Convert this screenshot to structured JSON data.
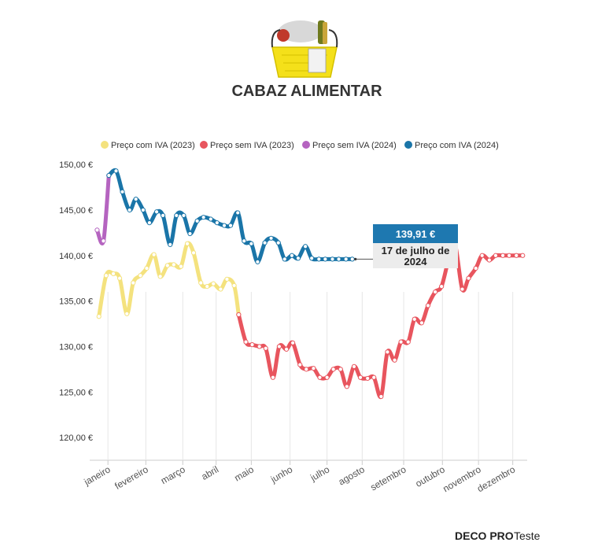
{
  "chart_data": {
    "type": "line",
    "title": "CABAZ ALIMENTAR",
    "ylim": [
      117.5,
      152
    ],
    "yticks": [
      120,
      125,
      130,
      135,
      140,
      145,
      150
    ],
    "ytick_labels": [
      "120,00 €",
      "125,00 €",
      "130,00 €",
      "135,00 €",
      "140,00 €",
      "145,00 €",
      "150,00 €"
    ],
    "xlim": [
      0,
      48
    ],
    "months": [
      {
        "label": "janeiro",
        "x": 1.5
      },
      {
        "label": "fevereiro",
        "x": 5.7
      },
      {
        "label": "março",
        "x": 9.8
      },
      {
        "label": "abril",
        "x": 13.5
      },
      {
        "label": "maio",
        "x": 17.4
      },
      {
        "label": "junho",
        "x": 21.7
      },
      {
        "label": "julho",
        "x": 25.8
      },
      {
        "label": "agosto",
        "x": 29.7
      },
      {
        "label": "setembro",
        "x": 34.3
      },
      {
        "label": "outubro",
        "x": 38.6
      },
      {
        "label": "novembro",
        "x": 42.6
      },
      {
        "label": "dezembro",
        "x": 46.4
      }
    ],
    "series": [
      {
        "name": "Preço com IVA (2023)",
        "color": "#f4e27e",
        "x": [
          0.5,
          1.3,
          2.1,
          2.8,
          3.6,
          4.3,
          5.1,
          5.8,
          6.6,
          7.3,
          8.1,
          8.8,
          9.6,
          10.3,
          11.0,
          11.8,
          12.5,
          13.2,
          14.0,
          14.7,
          15.5,
          16.0
        ],
        "values": [
          133.3,
          137.8,
          138.0,
          137.5,
          133.6,
          137.0,
          137.8,
          138.6,
          140.1,
          137.7,
          138.9,
          139.0,
          138.8,
          141.3,
          140.3,
          137.0,
          136.6,
          136.9,
          136.3,
          137.4,
          136.7,
          133.5
        ]
      },
      {
        "name": "Preço sem IVA (2023)",
        "color": "#e8555e",
        "x": [
          16.0,
          16.8,
          17.5,
          18.3,
          19.0,
          19.8,
          20.5,
          21.3,
          22.0,
          22.8,
          23.5,
          24.3,
          25.0,
          25.8,
          26.5,
          27.3,
          28.0,
          28.8,
          29.5,
          30.3,
          31.0,
          31.8,
          32.5,
          33.3,
          34.0,
          34.8,
          35.5,
          36.3,
          37.0,
          37.8,
          38.5,
          39.3,
          40.0,
          40.8,
          41.5,
          42.3,
          43.0,
          43.8,
          44.5,
          45.3,
          46.0,
          46.8,
          47.5
        ],
        "values": [
          133.5,
          130.5,
          130.2,
          130.0,
          129.8,
          126.6,
          130.0,
          129.7,
          130.4,
          128.0,
          127.5,
          127.6,
          126.6,
          126.6,
          127.5,
          127.5,
          125.6,
          127.8,
          126.6,
          126.5,
          126.6,
          124.5,
          129.4,
          128.5,
          130.5,
          130.5,
          133.0,
          132.6,
          134.5,
          136.0,
          136.6,
          139.6,
          141.2,
          136.3,
          137.5,
          138.6,
          140.0,
          139.5,
          140.0,
          140.0,
          140.0,
          140.0,
          140.0
        ]
      },
      {
        "name": "Preço sem IVA (2024)",
        "color": "#b564c0",
        "x": [
          0.3,
          1.0,
          1.6
        ],
        "values": [
          142.8,
          141.6,
          148.8
        ]
      },
      {
        "name": "Preço com IVA (2024)",
        "color": "#1a75a8",
        "x": [
          1.6,
          2.4,
          3.1,
          3.9,
          4.6,
          5.4,
          6.1,
          6.9,
          7.6,
          8.4,
          9.1,
          9.9,
          10.6,
          11.4,
          12.1,
          12.9,
          13.6,
          14.4,
          15.1,
          15.9,
          16.6,
          17.4,
          18.1,
          18.9,
          19.6,
          20.4,
          21.1,
          21.9,
          22.6,
          23.4,
          24.1,
          24.9,
          25.6,
          26.4,
          27.1,
          27.9,
          28.6
        ],
        "values": [
          148.8,
          149.3,
          147.0,
          145.0,
          146.2,
          145.0,
          143.6,
          144.8,
          144.4,
          141.2,
          144.4,
          144.4,
          142.4,
          143.8,
          144.2,
          144.0,
          143.6,
          143.3,
          143.3,
          144.7,
          141.6,
          141.3,
          139.3,
          141.4,
          141.9,
          141.4,
          139.6,
          140.0,
          139.7,
          141.0,
          139.7,
          139.6,
          139.6,
          139.6,
          139.6,
          139.6,
          139.6
        ]
      }
    ],
    "callout": {
      "value": "139,91 €",
      "date_line1": "17 de julho de",
      "date_line2": "2024"
    },
    "colors": {
      "callout_bg": "#1e78b0",
      "callout_date_bg": "#ececec",
      "axis": "#cccccc",
      "gridline": "#e6e6e6"
    }
  },
  "footer": {
    "brand_bold": "DECO PRO",
    "brand_light": "Teste"
  }
}
